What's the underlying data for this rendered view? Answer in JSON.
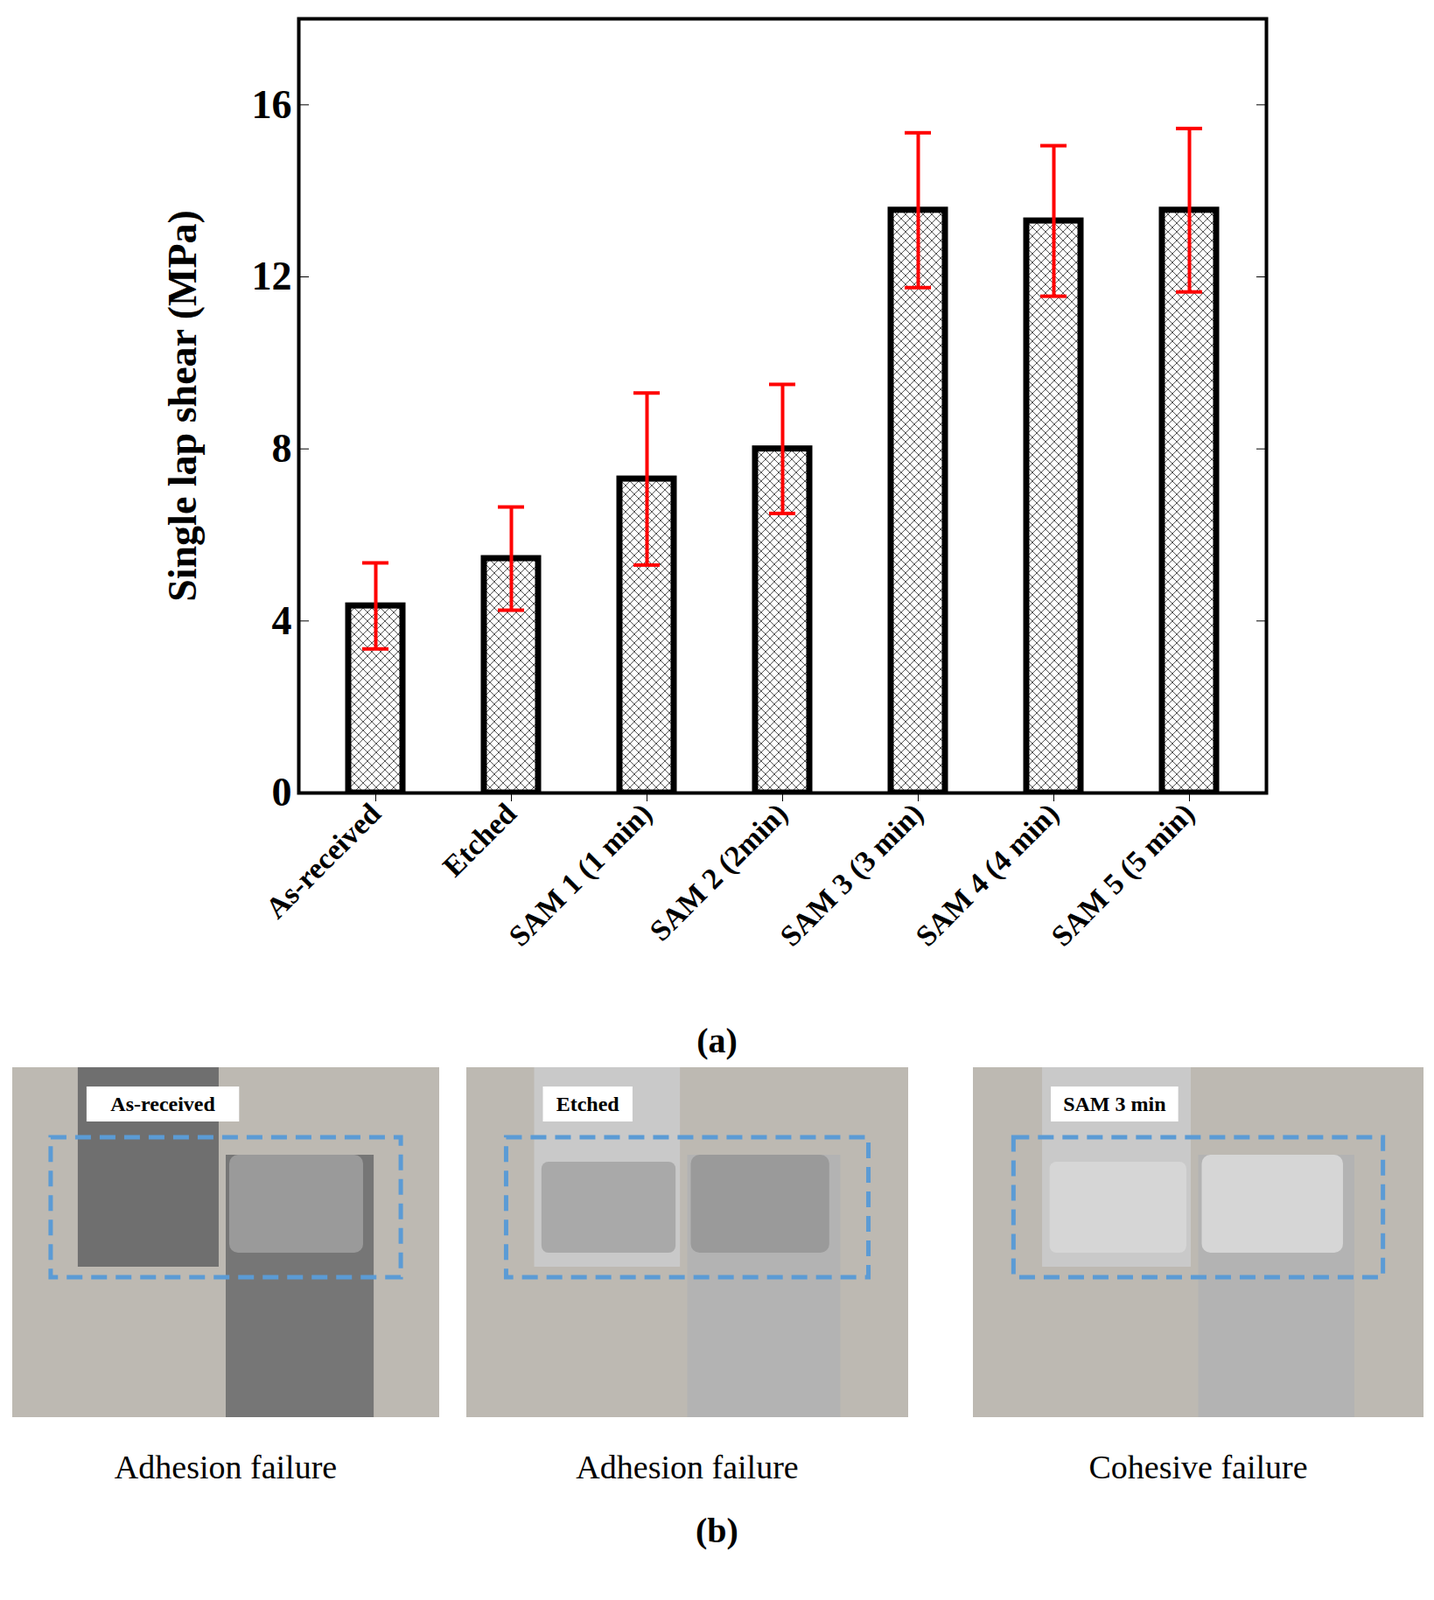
{
  "chart_data": {
    "type": "bar",
    "title": "(a)",
    "y_label": "Single lap shear (MPa)",
    "categories": [
      "As-received",
      "Etched",
      "SAM 1 (1 min)",
      "SAM 2 (2min)",
      "SAM 3 (3 min)",
      "SAM 4 (4 min)",
      "SAM 5 (5 min)"
    ],
    "values": [
      4.35,
      5.45,
      7.3,
      8.0,
      13.55,
      13.3,
      13.55
    ],
    "errors": [
      1.0,
      1.2,
      2.0,
      1.5,
      1.8,
      1.75,
      1.9
    ],
    "ylim": [
      0,
      18
    ],
    "yticks": [
      0,
      4,
      8,
      12,
      16
    ]
  },
  "figure_b": {
    "caption": "(b)",
    "photos": [
      {
        "label": "As-received",
        "caption": "Adhesion failure"
      },
      {
        "label": "Etched",
        "caption": "Adhesion failure"
      },
      {
        "label": "SAM 3 min",
        "caption": "Cohesive failure"
      }
    ]
  }
}
